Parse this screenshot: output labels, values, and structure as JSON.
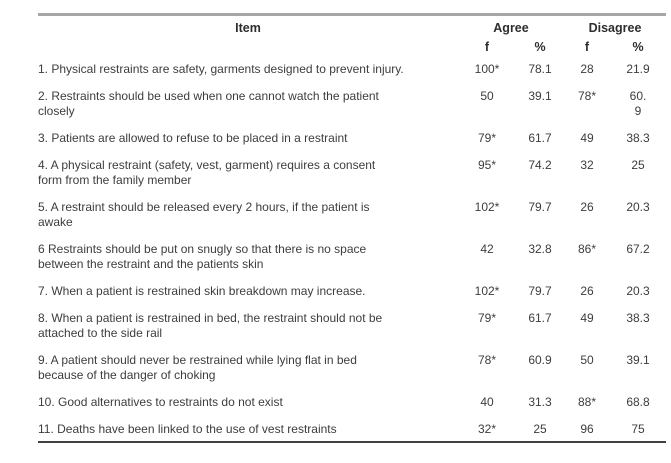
{
  "table": {
    "colors": {
      "top_rule": "#a6a6a6",
      "bottom_rule": "#414141",
      "text": "#3d3d3d"
    },
    "header": {
      "item": "Item",
      "agree": "Agree",
      "disagree": "Disagree",
      "agree_f": "f",
      "agree_pct": "%",
      "disagree_f": "f",
      "disagree_pct": "%"
    },
    "rows": [
      {
        "item": "1. Physical restraints are safety, garments designed to prevent injury.",
        "agree_f": "100*",
        "agree_pct": "78.1",
        "disagree_f": "28",
        "disagree_pct": "21.9"
      },
      {
        "item": "2. Restraints should be used when one cannot watch the patient\nclosely",
        "agree_f": "50",
        "agree_pct": "39.1",
        "disagree_f": "78*",
        "disagree_pct": "60.\n9"
      },
      {
        "item": "3. Patients are allowed to refuse to be placed in a restraint",
        "agree_f": "79*",
        "agree_pct": "61.7",
        "disagree_f": "49",
        "disagree_pct": "38.3"
      },
      {
        "item": "4. A physical restraint (safety, vest, garment) requires a consent\nform from the family member",
        "agree_f": "95*",
        "agree_pct": "74.2",
        "disagree_f": "32",
        "disagree_pct": "25"
      },
      {
        "item": "5. A restraint should be released every 2 hours, if the patient is\nawake",
        "agree_f": "102*",
        "agree_pct": "79.7",
        "disagree_f": "26",
        "disagree_pct": "20.3"
      },
      {
        "item": "6 Restraints should be put on snugly so that there is no space\nbetween the restraint and the patients skin",
        "agree_f": "42",
        "agree_pct": "32.8",
        "disagree_f": "86*",
        "disagree_pct": "67.2"
      },
      {
        "item": "7. When a patient is restrained skin breakdown may increase.",
        "agree_f": "102*",
        "agree_pct": "79.7",
        "disagree_f": "26",
        "disagree_pct": "20.3"
      },
      {
        "item": "8. When a patient is restrained in bed, the restraint should not be\nattached to the side rail",
        "agree_f": "79*",
        "agree_pct": "61.7",
        "disagree_f": "49",
        "disagree_pct": "38.3"
      },
      {
        "item": "9. A patient should never be restrained while lying flat in bed\nbecause of the danger of choking",
        "agree_f": "78*",
        "agree_pct": "60.9",
        "disagree_f": "50",
        "disagree_pct": "39.1"
      },
      {
        "item": "10. Good alternatives to restraints do not exist",
        "agree_f": "40",
        "agree_pct": "31.3",
        "disagree_f": "88*",
        "disagree_pct": "68.8"
      },
      {
        "item": "11. Deaths have been linked to the use of vest restraints",
        "agree_f": "32*",
        "agree_pct": "25",
        "disagree_f": "96",
        "disagree_pct": "75"
      }
    ]
  }
}
